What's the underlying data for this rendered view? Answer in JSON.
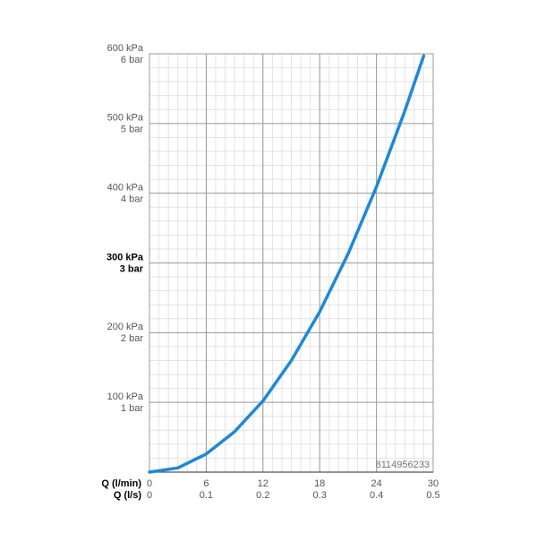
{
  "chart_data": {
    "type": "line",
    "x_label": "Q (l/min)",
    "x2_label": "Q (l/s)",
    "xlim": [
      0,
      30
    ],
    "xticks": [
      0,
      6,
      12,
      18,
      24,
      30
    ],
    "x2lim": [
      0,
      0.5
    ],
    "x2ticks": [
      0,
      0.1,
      0.2,
      0.3,
      0.4,
      0.5
    ],
    "ylim": [
      0,
      600
    ],
    "yticks": [
      {
        "value": 100,
        "label": "100 kPa"
      },
      {
        "value": 200,
        "label": "200 kPa"
      },
      {
        "value": 300,
        "label": "300 kPa"
      },
      {
        "value": 400,
        "label": "400 kPa"
      },
      {
        "value": 500,
        "label": "500 kPa"
      },
      {
        "value": 600,
        "label": "600 kPa"
      }
    ],
    "y2lim": [
      0,
      6
    ],
    "y2ticks": [
      {
        "value": 1,
        "label": "1 bar"
      },
      {
        "value": 2,
        "label": "2 bar"
      },
      {
        "value": 3,
        "label": "3 bar"
      },
      {
        "value": 4,
        "label": "4 bar"
      },
      {
        "value": 5,
        "label": "5 bar"
      },
      {
        "value": 6,
        "label": "6 bar"
      }
    ],
    "highlight_ytick": 300,
    "annotation": "8114956233",
    "grid": true,
    "x": [
      0,
      3,
      6,
      9,
      12,
      15,
      18,
      21,
      24,
      27,
      29
    ],
    "series": [
      {
        "color": "#1e88d8",
        "values": [
          0,
          6,
          26,
          58,
          102,
          160,
          230,
          313,
          409,
          518,
          597
        ]
      }
    ]
  }
}
